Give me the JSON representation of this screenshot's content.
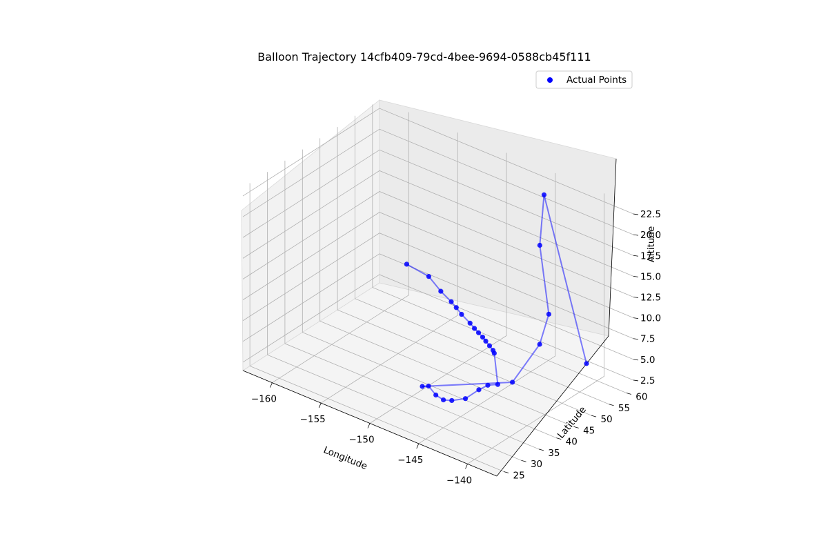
{
  "chart_data": {
    "type": "scatter",
    "projection": "3d",
    "title": "Balloon Trajectory 14cfb409-79cd-4bee-9694-0588cb45f111",
    "xlabel": "Longitude",
    "ylabel": "Latitude",
    "zlabel": "Altitude",
    "xlim": [
      -163,
      -137
    ],
    "ylim": [
      23,
      62
    ],
    "zlim": [
      1.5,
      23.5
    ],
    "x_ticks": [
      "−160",
      "−155",
      "−150",
      "−145",
      "−140"
    ],
    "y_ticks": [
      "25",
      "30",
      "35",
      "40",
      "45",
      "50",
      "55",
      "60"
    ],
    "z_ticks": [
      "2.5",
      "5.0",
      "7.5",
      "10.0",
      "12.5",
      "15.0",
      "17.5",
      "20.0",
      "22.5"
    ],
    "grid": true,
    "legend": {
      "position": "upper-right",
      "entries": [
        "Actual Points"
      ]
    },
    "colors": {
      "points": "#0000ff",
      "line": "#0000ff"
    },
    "line_alpha": 0.5,
    "series": [
      {
        "name": "Actual Points",
        "points": [
          {
            "x": -159.5,
            "y": 60.0,
            "z": 6.0
          },
          {
            "x": -156.7,
            "y": 58.5,
            "z": 6.3
          },
          {
            "x": -155.0,
            "y": 57.2,
            "z": 5.7
          },
          {
            "x": -153.5,
            "y": 56.0,
            "z": 5.5
          },
          {
            "x": -152.7,
            "y": 55.2,
            "z": 5.4
          },
          {
            "x": -151.8,
            "y": 54.2,
            "z": 5.3
          },
          {
            "x": -150.5,
            "y": 53.0,
            "z": 5.2
          },
          {
            "x": -149.8,
            "y": 52.3,
            "z": 5.1
          },
          {
            "x": -149.2,
            "y": 51.8,
            "z": 5.0
          },
          {
            "x": -148.6,
            "y": 51.3,
            "z": 4.9
          },
          {
            "x": -148.1,
            "y": 50.8,
            "z": 4.8
          },
          {
            "x": -147.5,
            "y": 50.2,
            "z": 4.7
          },
          {
            "x": -147.0,
            "y": 49.8,
            "z": 4.5
          },
          {
            "x": -146.8,
            "y": 49.6,
            "z": 4.3
          },
          {
            "x": -143.0,
            "y": 40.0,
            "z": 5.0
          },
          {
            "x": -143.3,
            "y": 38.0,
            "z": 5.3
          },
          {
            "x": -143.5,
            "y": 36.0,
            "z": 5.2
          },
          {
            "x": -143.8,
            "y": 33.0,
            "z": 4.8
          },
          {
            "x": -144.3,
            "y": 30.5,
            "z": 5.0
          },
          {
            "x": -144.8,
            "y": 29.5,
            "z": 5.1
          },
          {
            "x": -145.5,
            "y": 29.3,
            "z": 5.4
          },
          {
            "x": -146.5,
            "y": 30.0,
            "z": 5.8
          },
          {
            "x": -147.5,
            "y": 31.0,
            "z": 5.0
          },
          {
            "x": -141.5,
            "y": 40.0,
            "z": 6.0
          },
          {
            "x": -140.5,
            "y": 45.0,
            "z": 9.7
          },
          {
            "x": -141.0,
            "y": 49.0,
            "z": 12.0
          },
          {
            "x": -143.0,
            "y": 52.0,
            "z": 18.5
          },
          {
            "x": -144.0,
            "y": 56.0,
            "z": 23.0
          },
          {
            "x": -137.5,
            "y": 50.0,
            "z": 7.5
          }
        ]
      }
    ]
  }
}
